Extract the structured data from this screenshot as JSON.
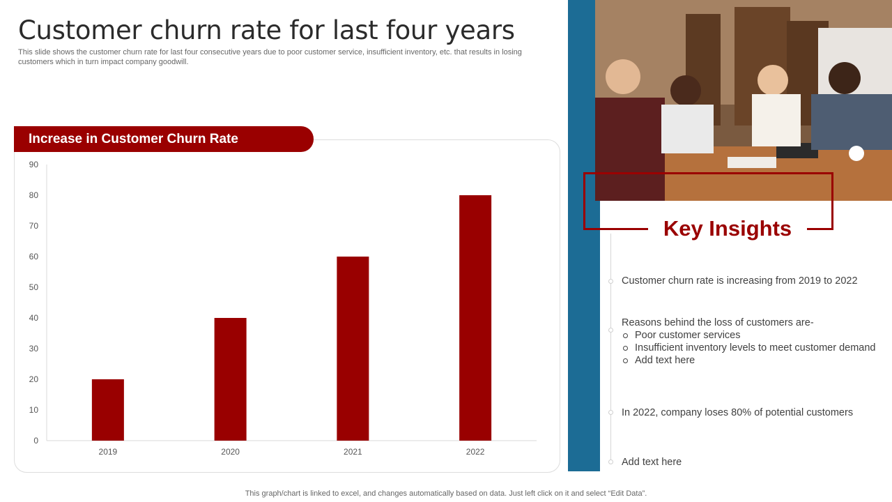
{
  "slide": {
    "title": "Customer churn rate for last four years",
    "subtitle": "This slide shows the customer churn rate for last four consecutive years due to  poor customer service, insufficient inventory, etc. that results in losing customers which in turn impact company goodwill.",
    "footer": "This graph/chart is linked to excel,  and changes automatically based on data. Just left click on it and select “Edit Data”."
  },
  "chart_banner": "Increase in Customer Churn Rate",
  "chart_data": {
    "type": "bar",
    "title": "Increase in Customer Churn Rate",
    "categories": [
      "2019",
      "2020",
      "2021",
      "2022"
    ],
    "values": [
      20,
      40,
      60,
      80
    ],
    "xlabel": "",
    "ylabel": "",
    "ylim": [
      0,
      90
    ],
    "yticks": [
      "0",
      "10",
      "20",
      "30",
      "40",
      "50",
      "60",
      "70",
      "80",
      "90"
    ],
    "grid": false,
    "legend": "none",
    "bar_color": "#990000"
  },
  "insights": {
    "title": "Key Insights",
    "point1": "Customer churn rate is increasing from 2019 to 2022",
    "point2_intro": "Reasons behind the loss of customers are-",
    "point2_bullets": [
      "Poor customer services",
      "Insufficient inventory levels to meet customer demand",
      "Add text here"
    ],
    "point3": "In 2022, company loses 80% of potential customers",
    "point4": "Add text here"
  },
  "colors": {
    "accent_red": "#9a0000",
    "panel_blue": "#1c6c95"
  },
  "image": {
    "photo_icon": "team-meeting-photo"
  }
}
